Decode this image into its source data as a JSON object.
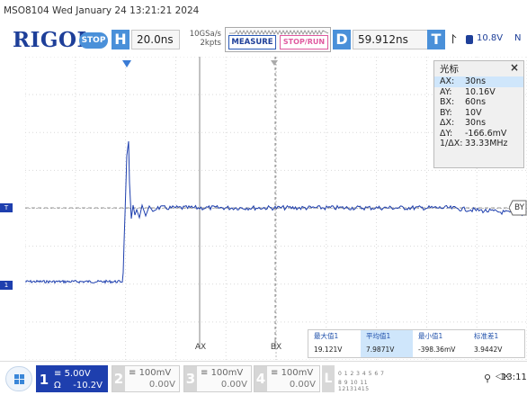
{
  "title": "MSO8104  Wed January 24 13:21:21 2024",
  "toolbar": {
    "brand": "RIGOL",
    "run_state": "STOP",
    "timebase_key": "H",
    "timebase": "20.0ns",
    "sample_rate": "10GSa/s",
    "memory_depth": "2kpts",
    "measure_label": "MEASURE",
    "stoprun_label": "STOP/RUN",
    "delay_key": "D",
    "delay": "59.912ns",
    "trigger_key": "T",
    "trigger_level": "10.8V",
    "trigger_mode": "N"
  },
  "cursor_panel": {
    "title": "光标",
    "close": "×",
    "rows": [
      {
        "k": "AX:",
        "v": "30ns"
      },
      {
        "k": "AY:",
        "v": "10.16V"
      },
      {
        "k": "BX:",
        "v": "60ns"
      },
      {
        "k": "BY:",
        "v": "10V"
      },
      {
        "k": "ΔX:",
        "v": "30ns"
      },
      {
        "k": "ΔY:",
        "v": "-166.6mV"
      },
      {
        "k": "1/ΔX:",
        "v": "33.33MHz"
      }
    ]
  },
  "cursor_labels": {
    "ax": "AX",
    "bx": "BX",
    "by": "BY"
  },
  "markers": {
    "trigger_marker": "T",
    "ch1_marker": "1"
  },
  "measurements": [
    {
      "header": "最大值1",
      "value": "19.121V"
    },
    {
      "header": "平均值1",
      "value": "7.9871V"
    },
    {
      "header": "最小值1",
      "value": "-398.36mV"
    },
    {
      "header": "标准差1",
      "value": "3.9442V"
    }
  ],
  "channels": [
    {
      "num": "1",
      "scale": "5.00V",
      "coupling": "Ω",
      "offset": "-10.2V"
    },
    {
      "num": "2",
      "scale": "100mV",
      "offset": "0.00V"
    },
    {
      "num": "3",
      "scale": "100mV",
      "offset": "0.00V"
    },
    {
      "num": "4",
      "scale": "100mV",
      "offset": "0.00V"
    }
  ],
  "logic": {
    "label": "L",
    "row1": "0 1 2 3  4 5 6 7",
    "row2": "8 9 10 11 12131415"
  },
  "status": {
    "volume": "◁×",
    "clock": "13:11"
  },
  "colors": {
    "brand": "#1e3f99",
    "accent": "#4a90d9",
    "ch1": "#1e3fae",
    "trace": "#1e3fae"
  }
}
